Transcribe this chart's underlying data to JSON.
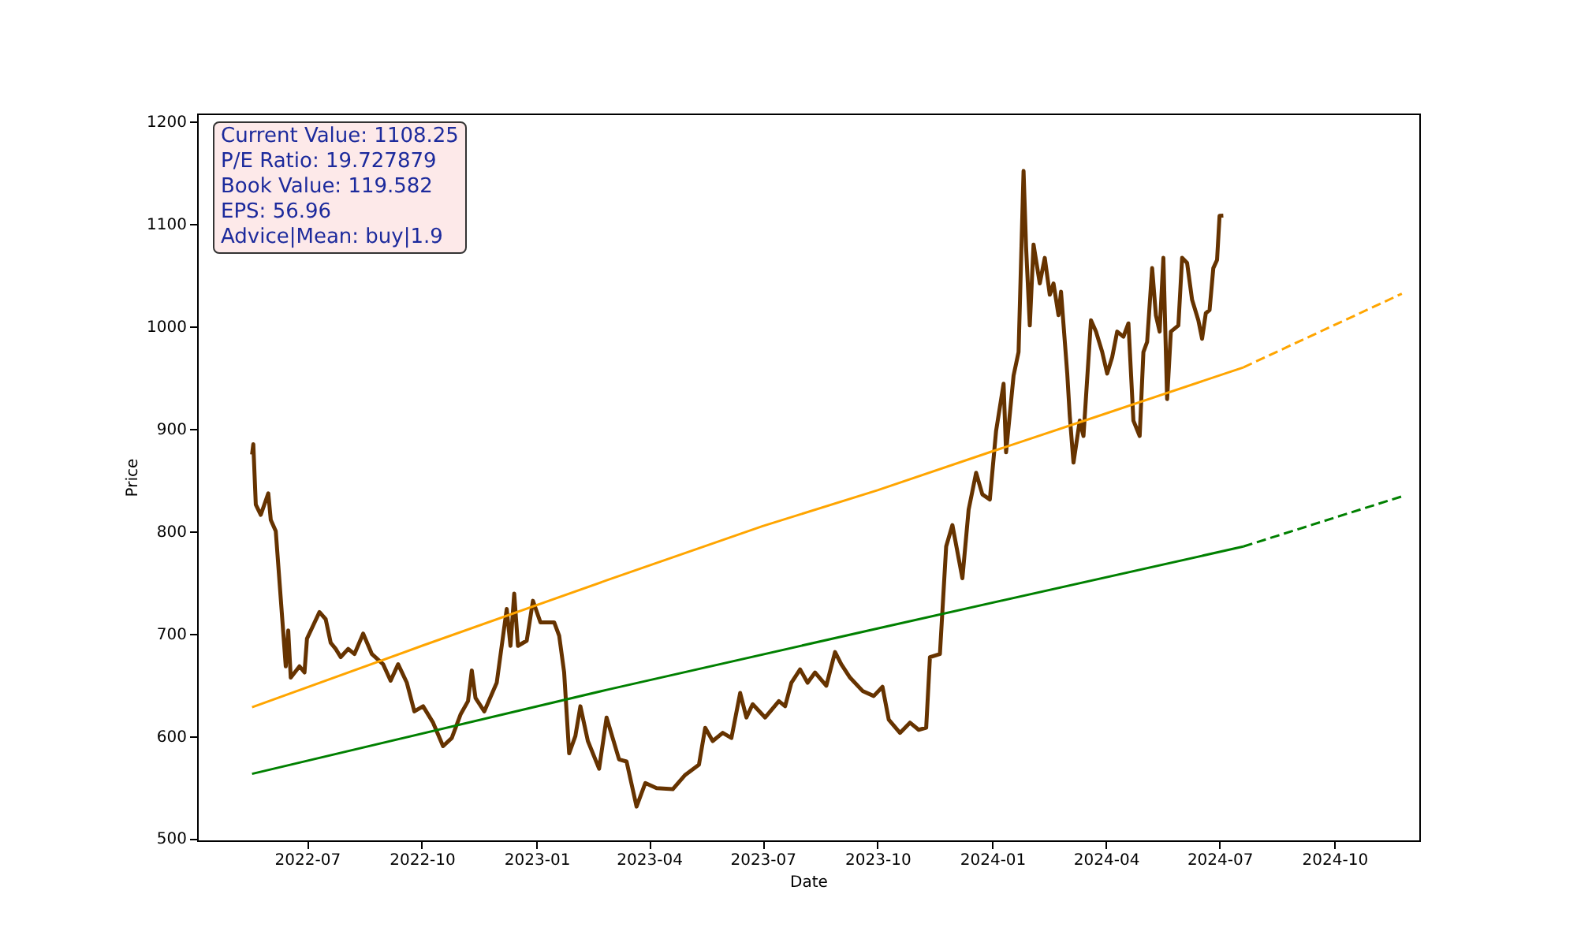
{
  "chart_data": {
    "type": "line",
    "xlabel": "Date",
    "ylabel": "Price",
    "annotations": [
      "Current Value: 1108.25",
      "P/E Ratio: 19.727879",
      "Book Value: 119.582",
      "EPS: 56.96",
      "Advice|Mean: buy|1.9"
    ],
    "xlim": [
      "2022-04-04",
      "2024-12-08"
    ],
    "xticks": [
      "2022-07",
      "2022-10",
      "2023-01",
      "2023-04",
      "2023-07",
      "2023-10",
      "2024-01",
      "2024-04",
      "2024-07",
      "2024-10"
    ],
    "ylim": [
      498,
      1208
    ],
    "yticks": [
      500,
      600,
      700,
      800,
      900,
      1000,
      1100,
      1200
    ],
    "series": [
      {
        "color": "#663300",
        "line_style": "solid",
        "x": [
          "2022-05-18",
          "2022-05-19",
          "2022-05-21",
          "2022-05-25",
          "2022-05-31",
          "2022-06-02",
          "2022-06-06",
          "2022-06-10",
          "2022-06-14",
          "2022-06-16",
          "2022-06-18",
          "2022-06-25",
          "2022-06-29",
          "2022-07-01",
          "2022-07-06",
          "2022-07-11",
          "2022-07-16",
          "2022-07-20",
          "2022-07-24",
          "2022-07-28",
          "2022-08-03",
          "2022-08-08",
          "2022-08-15",
          "2022-08-22",
          "2022-08-31",
          "2022-09-06",
          "2022-09-12",
          "2022-09-19",
          "2022-09-25",
          "2022-10-02",
          "2022-10-10",
          "2022-10-18",
          "2022-10-25",
          "2022-11-01",
          "2022-11-07",
          "2022-11-10",
          "2022-11-13",
          "2022-11-20",
          "2022-11-30",
          "2022-12-08",
          "2022-12-11",
          "2022-12-14",
          "2022-12-17",
          "2022-12-24",
          "2022-12-29",
          "2023-01-04",
          "2023-01-15",
          "2023-01-19",
          "2023-01-23",
          "2023-01-27",
          "2023-02-01",
          "2023-02-05",
          "2023-02-11",
          "2023-02-20",
          "2023-02-26",
          "2023-03-08",
          "2023-03-14",
          "2023-03-22",
          "2023-03-29",
          "2023-04-07",
          "2023-04-20",
          "2023-04-30",
          "2023-05-11",
          "2023-05-16",
          "2023-05-22",
          "2023-05-30",
          "2023-06-06",
          "2023-06-13",
          "2023-06-18",
          "2023-06-23",
          "2023-07-03",
          "2023-07-14",
          "2023-07-19",
          "2023-07-24",
          "2023-07-31",
          "2023-08-06",
          "2023-08-12",
          "2023-08-21",
          "2023-08-28",
          "2023-09-02",
          "2023-09-09",
          "2023-09-19",
          "2023-09-28",
          "2023-10-05",
          "2023-10-10",
          "2023-10-19",
          "2023-10-27",
          "2023-11-03",
          "2023-11-09",
          "2023-11-12",
          "2023-11-20",
          "2023-11-25",
          "2023-11-30",
          "2023-12-08",
          "2023-12-13",
          "2023-12-19",
          "2023-12-24",
          "2023-12-30",
          "2024-01-04",
          "2024-01-10",
          "2024-01-12",
          "2024-01-18",
          "2024-01-22",
          "2024-01-26",
          "2024-01-28",
          "2024-01-31",
          "2024-02-03",
          "2024-02-08",
          "2024-02-12",
          "2024-02-16",
          "2024-02-19",
          "2024-02-23",
          "2024-02-25",
          "2024-03-01",
          "2024-03-03",
          "2024-03-06",
          "2024-03-11",
          "2024-03-14",
          "2024-03-20",
          "2024-03-24",
          "2024-03-29",
          "2024-04-02",
          "2024-04-06",
          "2024-04-10",
          "2024-04-15",
          "2024-04-19",
          "2024-04-23",
          "2024-04-28",
          "2024-05-01",
          "2024-05-04",
          "2024-05-08",
          "2024-05-11",
          "2024-05-14",
          "2024-05-17",
          "2024-05-20",
          "2024-05-23",
          "2024-05-29",
          "2024-06-01",
          "2024-06-05",
          "2024-06-09",
          "2024-06-14",
          "2024-06-17",
          "2024-06-20",
          "2024-06-23",
          "2024-06-26",
          "2024-06-29",
          "2024-07-01",
          "2024-07-04"
        ],
        "values": [
          875,
          885,
          826,
          816,
          837,
          811,
          800,
          734,
          668,
          703,
          657,
          668,
          662,
          695,
          708,
          721,
          714,
          691,
          685,
          677,
          685,
          680,
          700,
          680,
          670,
          654,
          670,
          652,
          624,
          629,
          613,
          590,
          598,
          621,
          634,
          664,
          637,
          624,
          652,
          724,
          688,
          739,
          688,
          693,
          732,
          711,
          711,
          698,
          662,
          583,
          600,
          629,
          595,
          568,
          618,
          577,
          575,
          531,
          554,
          549,
          548,
          562,
          572,
          608,
          595,
          603,
          598,
          642,
          618,
          631,
          618,
          634,
          629,
          652,
          665,
          652,
          662,
          649,
          682,
          670,
          657,
          644,
          639,
          648,
          616,
          603,
          613,
          606,
          608,
          677,
          680,
          785,
          806,
          754,
          821,
          857,
          836,
          831,
          898,
          944,
          877,
          952,
          975,
          1152,
          1078,
          1001,
          1080,
          1042,
          1067,
          1031,
          1042,
          1011,
          1034,
          954,
          913,
          867,
          908,
          893,
          1006,
          995,
          975,
          954,
          970,
          995,
          990,
          1003,
          908,
          893,
          975,
          985,
          1057,
          1011,
          995,
          1067,
          929,
          995,
          1001,
          1067,
          1062,
          1026,
          1006,
          988,
          1013,
          1016,
          1057,
          1065,
          1108,
          1108.25
        ]
      },
      {
        "color": "#ffa500",
        "line_style": "solid",
        "x": [
          "2022-05-18",
          "2022-10-01",
          "2023-02-26",
          "2023-07-01",
          "2023-10-01",
          "2024-01-01",
          "2024-04-01",
          "2024-07-20"
        ],
        "values": [
          628,
          688,
          752,
          805,
          840,
          878,
          915,
          960
        ]
      },
      {
        "color": "#ffa500",
        "line_style": "dashed",
        "x": [
          "2024-07-20",
          "2024-11-24"
        ],
        "values": [
          960,
          1032
        ]
      },
      {
        "color": "#008000",
        "line_style": "solid",
        "x": [
          "2022-05-18",
          "2023-02-26",
          "2023-10-01",
          "2024-07-20"
        ],
        "values": [
          563,
          645,
          705,
          785
        ]
      },
      {
        "color": "#008000",
        "line_style": "dashed",
        "x": [
          "2024-07-20",
          "2024-11-24"
        ],
        "values": [
          785,
          834
        ]
      }
    ]
  }
}
